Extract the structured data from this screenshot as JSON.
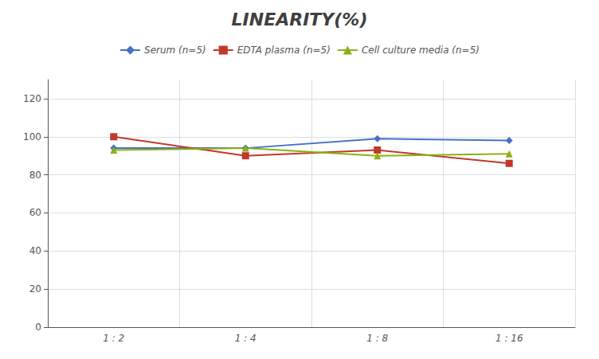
{
  "chart_data": {
    "type": "line",
    "title": "LINEARITY(%)",
    "categories": [
      "1 : 2",
      "1 : 4",
      "1 : 8",
      "1 : 16"
    ],
    "series": [
      {
        "name": "Serum (n=5)",
        "color": "#4472C4",
        "marker": "diamond",
        "values": [
          94,
          94,
          99,
          98
        ]
      },
      {
        "name": "EDTA plasma (n=5)",
        "color": "#C0392B",
        "marker": "square",
        "values": [
          100,
          90,
          93,
          86
        ]
      },
      {
        "name": "Cell culture media (n=5)",
        "color": "#8DB014",
        "marker": "triangle",
        "values": [
          93,
          94,
          90,
          91
        ]
      }
    ],
    "ylim": [
      0,
      130
    ],
    "yticks": [
      0,
      20,
      40,
      60,
      80,
      100,
      120
    ],
    "grid": true,
    "legend": "top"
  }
}
